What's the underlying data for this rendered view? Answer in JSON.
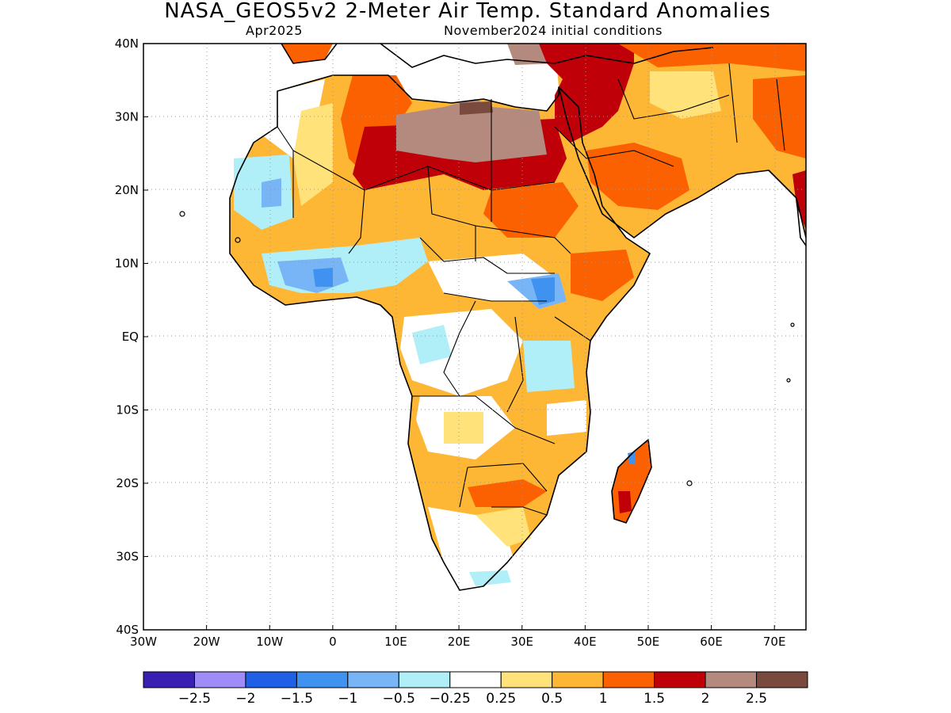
{
  "title": "NASA_GEOS5v2 2-Meter Air Temp. Standard Anomalies",
  "valid_month": "Apr2025",
  "init_conditions": "November2024 initial conditions",
  "map": {
    "lon_range": [
      -30,
      75
    ],
    "lat_range": [
      -40,
      40
    ],
    "lon_ticks": [
      {
        "value": -30,
        "label": "30W"
      },
      {
        "value": -20,
        "label": "20W"
      },
      {
        "value": -10,
        "label": "10W"
      },
      {
        "value": 0,
        "label": "0"
      },
      {
        "value": 10,
        "label": "10E"
      },
      {
        "value": 20,
        "label": "20E"
      },
      {
        "value": 30,
        "label": "30E"
      },
      {
        "value": 40,
        "label": "40E"
      },
      {
        "value": 50,
        "label": "50E"
      },
      {
        "value": 60,
        "label": "60E"
      },
      {
        "value": 70,
        "label": "70E"
      }
    ],
    "lat_ticks": [
      {
        "value": 40,
        "label": "40N"
      },
      {
        "value": 30,
        "label": "30N"
      },
      {
        "value": 20,
        "label": "20N"
      },
      {
        "value": 10,
        "label": "10N"
      },
      {
        "value": 0,
        "label": "EQ"
      },
      {
        "value": -10,
        "label": "10S"
      },
      {
        "value": -20,
        "label": "20S"
      },
      {
        "value": -30,
        "label": "30S"
      },
      {
        "value": -40,
        "label": "40S"
      }
    ],
    "grid": true
  },
  "colorbar": {
    "colors": [
      "#3a1fb3",
      "#9f8cf7",
      "#1f60e6",
      "#3f92f0",
      "#78b5f6",
      "#b0eef8",
      "#ffffff",
      "#ffe27a",
      "#fdb735",
      "#fb6100",
      "#c00008",
      "#b48a7e",
      "#7a4a3e"
    ],
    "labels": [
      "−2.5",
      "−2",
      "−1.5",
      "−1",
      "−0.5",
      "−0.25",
      "0.25",
      "0.5",
      "1",
      "1.5",
      "2",
      "2.5"
    ]
  },
  "anomaly_colors": {
    "neg1": "#3f92f0",
    "neg05": "#78b5f6",
    "neg025": "#b0eef8",
    "pos025": "#ffe27a",
    "pos05": "#fdb735",
    "pos1": "#fb6100",
    "pos15": "#c00008",
    "pos2": "#b48a7e",
    "pos25": "#7a4a3e"
  }
}
